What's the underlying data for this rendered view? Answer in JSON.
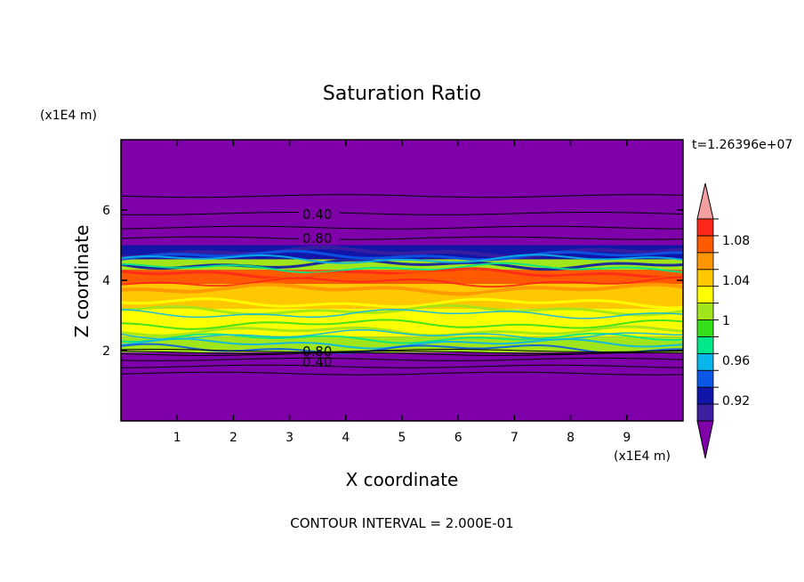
{
  "chart_data": {
    "type": "heatmap",
    "title": "Saturation Ratio",
    "xlabel": "X coordinate",
    "ylabel": "Z coordinate",
    "x_unit": "(x1E4 m)",
    "y_unit": "(x1E4 m)",
    "time_label": "t=1.26396e+07",
    "footer": "CONTOUR INTERVAL = 2.000E-01",
    "xlim": [
      0,
      10
    ],
    "ylim": [
      0,
      8
    ],
    "x_ticks": [
      "1",
      "2",
      "3",
      "4",
      "5",
      "6",
      "7",
      "8",
      "9"
    ],
    "y_ticks": [
      "2",
      "4",
      "6"
    ],
    "colorbar": {
      "labels": [
        "1.08",
        "1.04",
        "1",
        "0.96",
        "0.92"
      ],
      "levels": [
        0.9,
        0.92,
        0.94,
        0.96,
        0.98,
        1.0,
        1.02,
        1.04,
        1.06,
        1.08,
        1.1
      ],
      "colors": [
        "#7f00a8",
        "#3c1fa0",
        "#1216a8",
        "#0b57e6",
        "#07b6ea",
        "#00e88a",
        "#35e01a",
        "#a0e61a",
        "#ffff00",
        "#ffc800",
        "#ff9600",
        "#ff5a00",
        "#ff2818",
        "#f4a0a0"
      ],
      "extends": "both"
    },
    "contour_labels": [
      "0.40",
      "0.80",
      "0.80",
      "0.40"
    ],
    "bands": [
      {
        "z_from": 0.0,
        "z_to": 1.95,
        "level": "below 0.90"
      },
      {
        "z_from": 1.95,
        "z_to": 2.4,
        "level": "0.98-1.04"
      },
      {
        "z_from": 2.4,
        "z_to": 3.2,
        "level": "1.02-1.06"
      },
      {
        "z_from": 3.2,
        "z_to": 3.9,
        "level": "1.04-1.08"
      },
      {
        "z_from": 3.9,
        "z_to": 4.3,
        "level": "1.06-1.10"
      },
      {
        "z_from": 4.3,
        "z_to": 4.6,
        "level": "0.98-1.04"
      },
      {
        "z_from": 4.6,
        "z_to": 5.0,
        "level": "0.92-0.96"
      },
      {
        "z_from": 5.0,
        "z_to": 8.0,
        "level": "below 0.90"
      }
    ]
  }
}
